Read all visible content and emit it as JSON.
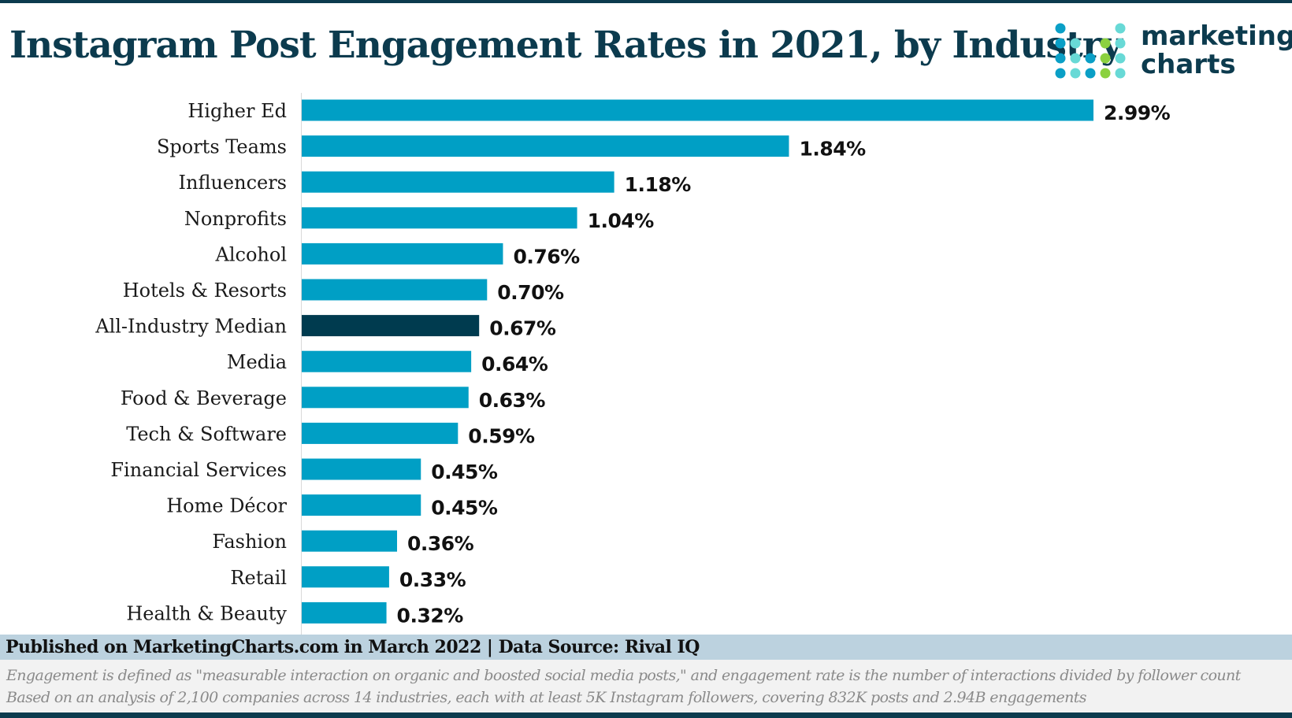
{
  "title": "Instagram Post Engagement Rates in 2021, by Industry",
  "logo": {
    "line1": "marketing",
    "line2": "charts"
  },
  "chart_data": {
    "type": "bar",
    "orientation": "horizontal",
    "title": "Instagram Post Engagement Rates in 2021, by Industry",
    "categories": [
      "Higher Ed",
      "Sports Teams",
      "Influencers",
      "Nonprofits",
      "Alcohol",
      "Hotels & Resorts",
      "All-Industry Median",
      "Media",
      "Food & Beverage",
      "Tech & Software",
      "Financial Services",
      "Home Décor",
      "Fashion",
      "Retail",
      "Health & Beauty"
    ],
    "values": [
      2.99,
      1.84,
      1.18,
      1.04,
      0.76,
      0.7,
      0.67,
      0.64,
      0.63,
      0.59,
      0.45,
      0.45,
      0.36,
      0.33,
      0.32
    ],
    "data_labels": [
      "2.99%",
      "1.84%",
      "1.18%",
      "1.04%",
      "0.76%",
      "0.70%",
      "0.67%",
      "0.64%",
      "0.63%",
      "0.59%",
      "0.45%",
      "0.45%",
      "0.36%",
      "0.33%",
      "0.32%"
    ],
    "unit": "%",
    "xlim": [
      0,
      3.2
    ],
    "grid": false,
    "colors": {
      "bar": "#009fc5",
      "highlight": "#003b4f",
      "highlight_category": "All-Industry Median"
    }
  },
  "footer": {
    "published": "Published on MarketingCharts.com in March 2022 | Data Source: Rival IQ",
    "note1": "Engagement is defined as \"measurable interaction on organic and boosted social media posts,\" and engagement rate is the number of interactions divided by follower count",
    "note2": "Based on an analysis of 2,100 companies across 14 industries, each with at least 5K Instagram followers, covering 832K posts and 2.94B engagements"
  }
}
